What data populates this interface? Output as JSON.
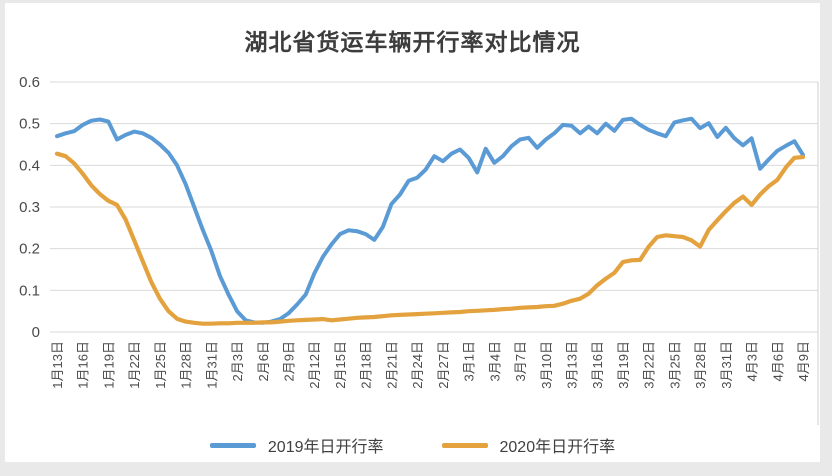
{
  "page": {
    "background": "#e9e9e9",
    "chart_background": "#ffffff",
    "gridline_color": "#d9d9d9",
    "plot_right_border_color": "#cfcfcf",
    "axis_label_color": "#4a4a4a"
  },
  "chart_data": {
    "type": "line",
    "title": "湖北省货运车辆开行率对比情况",
    "xlabel": "",
    "ylabel": "",
    "ylim": [
      0,
      0.6
    ],
    "y_tick_labels": [
      "0",
      "0.1",
      "0.2",
      "0.3",
      "0.4",
      "0.5",
      "0.6"
    ],
    "grid": "horizontal",
    "legend_position": "bottom",
    "x_tick_every": 3,
    "x_tick_labels": [
      "1月13日",
      "1月16日",
      "1月19日",
      "1月22日",
      "1月25日",
      "1月28日",
      "1月31日",
      "2月3日",
      "2月6日",
      "2月9日",
      "2月12日",
      "2月15日",
      "2月18日",
      "2月21日",
      "2月24日",
      "2月27日",
      "3月1日",
      "3月4日",
      "3月7日",
      "3月10日",
      "3月13日",
      "3月16日",
      "3月19日",
      "3月22日",
      "3月25日",
      "3月28日",
      "3月31日",
      "4月3日",
      "4月6日",
      "4月9日"
    ],
    "dates": [
      "1月13日",
      "1月14日",
      "1月15日",
      "1月16日",
      "1月17日",
      "1月18日",
      "1月19日",
      "1月20日",
      "1月21日",
      "1月22日",
      "1月23日",
      "1月24日",
      "1月25日",
      "1月26日",
      "1月27日",
      "1月28日",
      "1月29日",
      "1月30日",
      "1月31日",
      "2月1日",
      "2月2日",
      "2月3日",
      "2月4日",
      "2月5日",
      "2月6日",
      "2月7日",
      "2月8日",
      "2月9日",
      "2月10日",
      "2月11日",
      "2月12日",
      "2月13日",
      "2月14日",
      "2月15日",
      "2月16日",
      "2月17日",
      "2月18日",
      "2月19日",
      "2月20日",
      "2月21日",
      "2月22日",
      "2月23日",
      "2月24日",
      "2月25日",
      "2月26日",
      "2月27日",
      "2月28日",
      "2月29日",
      "3月1日",
      "3月2日",
      "3月3日",
      "3月4日",
      "3月5日",
      "3月6日",
      "3月7日",
      "3月8日",
      "3月9日",
      "3月10日",
      "3月11日",
      "3月12日",
      "3月13日",
      "3月14日",
      "3月15日",
      "3月16日",
      "3月17日",
      "3月18日",
      "3月19日",
      "3月20日",
      "3月21日",
      "3月22日",
      "3月23日",
      "3月24日",
      "3月25日",
      "3月26日",
      "3月27日",
      "3月28日",
      "3月29日",
      "3月30日",
      "3月31日",
      "4月1日",
      "4月2日",
      "4月3日",
      "4月4日",
      "4月5日",
      "4月6日",
      "4月7日",
      "4月8日",
      "4月9日"
    ],
    "series": [
      {
        "name": "2019年日开行率",
        "color": "#5B9BD5",
        "stroke_width": 4,
        "values": [
          0.47,
          0.477,
          0.482,
          0.497,
          0.507,
          0.51,
          0.505,
          0.462,
          0.473,
          0.481,
          0.477,
          0.466,
          0.45,
          0.43,
          0.4,
          0.355,
          0.3,
          0.245,
          0.195,
          0.135,
          0.09,
          0.05,
          0.028,
          0.023,
          0.022,
          0.025,
          0.031,
          0.045,
          0.066,
          0.09,
          0.14,
          0.18,
          0.21,
          0.235,
          0.244,
          0.242,
          0.235,
          0.221,
          0.252,
          0.307,
          0.33,
          0.363,
          0.37,
          0.39,
          0.422,
          0.41,
          0.428,
          0.438,
          0.418,
          0.383,
          0.44,
          0.406,
          0.422,
          0.446,
          0.462,
          0.466,
          0.442,
          0.462,
          0.477,
          0.497,
          0.495,
          0.477,
          0.493,
          0.477,
          0.5,
          0.483,
          0.509,
          0.512,
          0.497,
          0.485,
          0.477,
          0.47,
          0.503,
          0.508,
          0.512,
          0.489,
          0.501,
          0.468,
          0.49,
          0.465,
          0.448,
          0.465,
          0.392,
          0.414,
          0.435,
          0.447,
          0.458,
          0.425
        ]
      },
      {
        "name": "2020年日开行率",
        "color": "#E3A23D",
        "stroke_width": 4.2,
        "values": [
          0.428,
          0.422,
          0.405,
          0.38,
          0.352,
          0.331,
          0.315,
          0.305,
          0.27,
          0.22,
          0.17,
          0.12,
          0.08,
          0.05,
          0.032,
          0.025,
          0.022,
          0.02,
          0.02,
          0.021,
          0.021,
          0.022,
          0.022,
          0.022,
          0.023,
          0.023,
          0.025,
          0.027,
          0.028,
          0.029,
          0.03,
          0.031,
          0.028,
          0.03,
          0.032,
          0.034,
          0.035,
          0.036,
          0.038,
          0.04,
          0.041,
          0.042,
          0.043,
          0.044,
          0.045,
          0.046,
          0.047,
          0.048,
          0.05,
          0.051,
          0.052,
          0.053,
          0.055,
          0.056,
          0.058,
          0.059,
          0.06,
          0.062,
          0.063,
          0.068,
          0.075,
          0.08,
          0.092,
          0.112,
          0.128,
          0.142,
          0.168,
          0.172,
          0.173,
          0.205,
          0.228,
          0.232,
          0.23,
          0.228,
          0.22,
          0.205,
          0.245,
          0.268,
          0.29,
          0.31,
          0.325,
          0.305,
          0.33,
          0.35,
          0.365,
          0.395,
          0.418,
          0.42
        ]
      }
    ]
  }
}
